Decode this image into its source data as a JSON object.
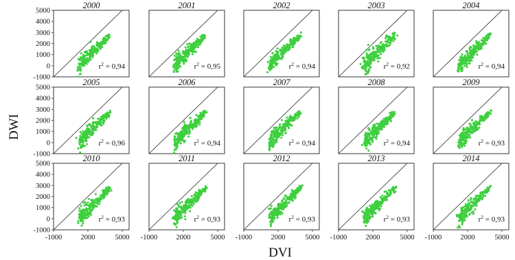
{
  "chart_data": {
    "type": "scatter",
    "xlabel": "DVI",
    "ylabel": "DWI",
    "xlim": [
      -1000,
      5600
    ],
    "ylim": [
      -1000,
      5000
    ],
    "x_ticks": [
      -1000,
      2000,
      5000
    ],
    "y_ticks": [
      -1000,
      0,
      1000,
      2000,
      3000,
      4000,
      5000
    ],
    "reference_line": "1:1",
    "point_color": "#3ecf3e",
    "panels": [
      {
        "year": "2000",
        "r2_value": "0,94"
      },
      {
        "year": "2001",
        "r2_value": "0,95"
      },
      {
        "year": "2002",
        "r2_value": "0,94"
      },
      {
        "year": "2003",
        "r2_value": "0,92"
      },
      {
        "year": "2004",
        "r2_value": "0,94"
      },
      {
        "year": "2005",
        "r2_value": "0,96"
      },
      {
        "year": "2006",
        "r2_value": "0,94"
      },
      {
        "year": "2007",
        "r2_value": "0,94"
      },
      {
        "year": "2008",
        "r2_value": "0,94"
      },
      {
        "year": "2009",
        "r2_value": "0,93"
      },
      {
        "year": "2010",
        "r2_value": "0,93"
      },
      {
        "year": "2011",
        "r2_value": "0,93"
      },
      {
        "year": "2012",
        "r2_value": "0,93"
      },
      {
        "year": "2013",
        "r2_value": "0,93"
      },
      {
        "year": "2014",
        "r2_value": "0,93"
      }
    ]
  }
}
